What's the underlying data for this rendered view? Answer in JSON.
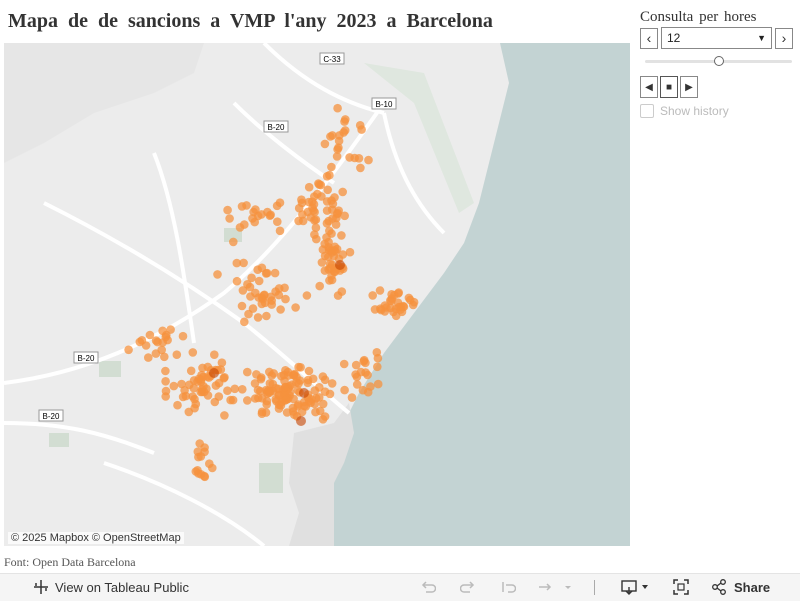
{
  "title": "Mapa de de sancions a VMP l'any 2023 a Barcelona",
  "map": {
    "attribution": "© 2025 Mapbox  © OpenStreetMap",
    "road_labels": [
      "C-33",
      "B-10",
      "B-20",
      "B-20",
      "B-20"
    ],
    "colors": {
      "land": "#ececec",
      "sea": "#c3d3d3",
      "park": "#d2ddd2",
      "road": "#ffffff",
      "dot": "#f5923e",
      "dot_dense": "#c74400"
    }
  },
  "source": "Font: Open Data Barcelona",
  "filter": {
    "title": "Consulta per hores",
    "value": "12",
    "slider_fraction": 0.5,
    "prev_label": "‹",
    "next_label": "›",
    "show_history_label": "Show history"
  },
  "toolbar": {
    "view_label": "View on Tableau Public",
    "share_label": "Share"
  }
}
